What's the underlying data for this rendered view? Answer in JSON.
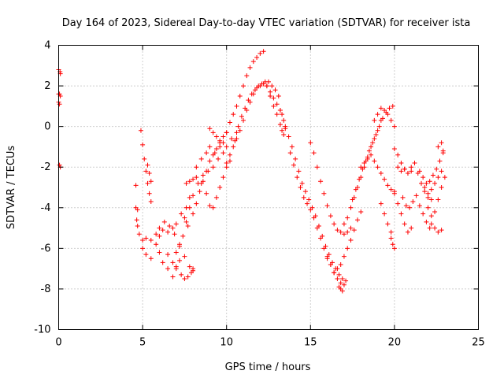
{
  "chart_data": {
    "type": "scatter",
    "title": "Day 164 of 2023, Sidereal Day-to-day VTEC variation (SDTVAR) for receiver ista",
    "xlabel": "GPS time / hours",
    "ylabel": "SDTVAR / TECUs",
    "xlim": [
      0,
      25
    ],
    "ylim": [
      -10,
      4
    ],
    "xticks": [
      0,
      5,
      10,
      15,
      20,
      25
    ],
    "yticks": [
      -10,
      -8,
      -6,
      -4,
      -2,
      0,
      2,
      4
    ],
    "xtick_labels": [
      "0",
      "5",
      "10",
      "15",
      "20",
      "25"
    ],
    "ytick_labels": [
      "-10",
      "-8",
      "-6",
      "-4",
      "-2",
      "0",
      "2",
      "4"
    ],
    "grid": true,
    "marker": "+",
    "color": "#ff0000",
    "series": [
      {
        "name": "s1",
        "x": [
          0.0,
          0.08,
          0.1
        ],
        "y": [
          2.8,
          2.7,
          2.6
        ]
      },
      {
        "name": "s2",
        "x": [
          0.0,
          0.05,
          0.1
        ],
        "y": [
          1.6,
          1.6,
          1.5
        ]
      },
      {
        "name": "s3",
        "x": [
          0.0,
          0.05
        ],
        "y": [
          1.2,
          1.1
        ]
      },
      {
        "name": "s4",
        "x": [
          0.05,
          0.1
        ],
        "y": [
          -1.9,
          -2.0
        ]
      },
      {
        "name": "s5",
        "x": [
          4.6,
          4.6,
          4.7,
          4.65,
          4.7
        ],
        "y": [
          -2.9,
          -4.0,
          -4.1,
          -4.6,
          -4.9
        ]
      },
      {
        "name": "s6",
        "x": [
          4.9,
          5.0,
          5.1,
          5.2,
          5.3,
          5.4,
          5.5
        ],
        "y": [
          -0.2,
          -0.9,
          -1.6,
          -2.2,
          -2.8,
          -3.3,
          -3.7
        ]
      },
      {
        "name": "s7",
        "x": [
          5.3,
          5.4,
          5.5
        ],
        "y": [
          -1.9,
          -2.3,
          -2.7
        ]
      },
      {
        "name": "s8",
        "x": [
          4.8,
          5.0,
          5.2,
          5.5,
          5.8,
          6.0,
          6.2,
          6.5,
          6.8,
          7.0,
          7.3,
          7.6,
          7.8
        ],
        "y": [
          -5.3,
          -5.6,
          -5.5,
          -5.6,
          -5.3,
          -5.4,
          -5.1,
          -5.2,
          -5.0,
          -4.8,
          -4.3,
          -4.0,
          -3.5
        ]
      },
      {
        "name": "s9",
        "x": [
          5.0,
          5.2,
          5.5,
          5.8,
          6.0,
          6.2,
          6.5,
          6.8,
          7.0,
          7.2
        ],
        "y": [
          -6.0,
          -6.3,
          -6.5,
          -5.8,
          -6.2,
          -6.7,
          -7.0,
          -7.4,
          -6.9,
          -6.6
        ]
      },
      {
        "name": "s10",
        "x": [
          6.0,
          6.3,
          6.6,
          6.9,
          7.2,
          7.5,
          7.8,
          8.0
        ],
        "y": [
          -5.0,
          -4.7,
          -4.9,
          -5.3,
          -5.8,
          -6.4,
          -6.9,
          -7.1
        ]
      },
      {
        "name": "s11",
        "x": [
          6.5,
          6.8,
          7.0,
          7.3,
          7.5,
          7.7,
          7.9,
          8.0
        ],
        "y": [
          -6.3,
          -6.7,
          -7.0,
          -7.3,
          -7.5,
          -7.4,
          -7.2,
          -7.0
        ]
      },
      {
        "name": "s12",
        "x": [
          7.0,
          7.2,
          7.4,
          7.6,
          7.8,
          8.0,
          8.3,
          8.6,
          8.9,
          9.2,
          9.5,
          9.8,
          10.0,
          10.3,
          10.6
        ],
        "y": [
          -6.2,
          -5.9,
          -5.4,
          -4.7,
          -4.0,
          -3.4,
          -2.8,
          -2.4,
          -2.2,
          -2.0,
          -1.6,
          -1.3,
          -1.0,
          -0.6,
          -0.3
        ]
      },
      {
        "name": "s13",
        "x": [
          7.5,
          7.7,
          8.0,
          8.2,
          8.4,
          8.6,
          8.8,
          9.0,
          9.3,
          9.6
        ],
        "y": [
          -4.5,
          -4.9,
          -4.3,
          -3.8,
          -3.2,
          -2.7,
          -2.2,
          -1.7,
          -1.3,
          -1.0
        ]
      },
      {
        "name": "s14",
        "x": [
          7.6,
          7.8,
          8.0,
          8.2
        ],
        "y": [
          -2.8,
          -2.7,
          -2.6,
          -2.5
        ]
      },
      {
        "name": "s15",
        "x": [
          8.2,
          8.5,
          8.8,
          9.0,
          9.2,
          9.4,
          9.6,
          9.8,
          10.0
        ],
        "y": [
          -2.0,
          -1.6,
          -1.3,
          -1.0,
          -1.4,
          -1.1,
          -0.8,
          -0.5,
          -0.3
        ]
      },
      {
        "name": "s16",
        "x": [
          8.5,
          8.8,
          9.0,
          9.2,
          9.4,
          9.6,
          9.8,
          10.0,
          10.2
        ],
        "y": [
          -2.8,
          -3.3,
          -3.9,
          -4.0,
          -3.5,
          -3.0,
          -2.5,
          -2.0,
          -1.7
        ]
      },
      {
        "name": "s17",
        "x": [
          9.0,
          9.2,
          9.4,
          9.6
        ],
        "y": [
          -0.1,
          -0.3,
          -0.5,
          -0.7
        ]
      },
      {
        "name": "s18",
        "x": [
          9.8,
          10.0,
          10.2,
          10.4,
          10.6,
          10.8,
          11.0,
          11.2,
          11.4,
          11.6,
          11.8,
          12.0,
          12.2
        ],
        "y": [
          -0.8,
          -0.3,
          0.2,
          0.6,
          1.0,
          1.5,
          2.0,
          2.5,
          2.9,
          3.2,
          3.4,
          3.6,
          3.7
        ]
      },
      {
        "name": "s19",
        "x": [
          10.0,
          10.2,
          10.4,
          10.6,
          10.8,
          11.0,
          11.2,
          11.4,
          11.6,
          11.8,
          12.0,
          12.2,
          12.4
        ],
        "y": [
          -1.8,
          -1.4,
          -1.0,
          -0.6,
          -0.2,
          0.3,
          0.8,
          1.2,
          1.6,
          1.9,
          2.0,
          2.1,
          2.0
        ]
      },
      {
        "name": "s20",
        "x": [
          10.5,
          10.7,
          10.9,
          11.1,
          11.3,
          11.5,
          11.7,
          11.9,
          12.1,
          12.3,
          12.5,
          12.7,
          12.9,
          13.1
        ],
        "y": [
          -0.7,
          0.0,
          0.5,
          0.9,
          1.3,
          1.6,
          1.8,
          2.0,
          2.1,
          2.2,
          2.2,
          2.0,
          1.8,
          1.5
        ]
      },
      {
        "name": "s21",
        "x": [
          12.4,
          12.6,
          12.8,
          13.0,
          13.2,
          13.4,
          13.5
        ],
        "y": [
          2.0,
          1.7,
          1.4,
          1.1,
          0.8,
          0.3,
          0.0
        ]
      },
      {
        "name": "s22",
        "x": [
          12.6,
          12.8,
          13.0,
          13.2,
          13.3,
          13.4
        ],
        "y": [
          1.5,
          1.0,
          0.6,
          0.1,
          -0.2,
          -0.4
        ]
      },
      {
        "name": "s23",
        "x": [
          13.2,
          13.3
        ],
        "y": [
          0.8,
          0.6
        ]
      },
      {
        "name": "s24",
        "x": [
          13.5,
          13.7,
          13.9,
          14.1,
          14.3,
          14.5,
          14.7,
          14.9,
          15.1,
          15.3,
          15.5,
          15.7,
          15.9,
          16.1,
          16.3,
          16.5,
          16.7,
          16.9,
          17.1
        ],
        "y": [
          -0.1,
          -0.5,
          -1.0,
          -1.6,
          -2.2,
          -2.8,
          -3.2,
          -3.6,
          -4.0,
          -4.4,
          -4.9,
          -5.4,
          -5.9,
          -6.3,
          -6.7,
          -7.0,
          -7.3,
          -7.5,
          -7.6
        ]
      },
      {
        "name": "s25",
        "x": [
          13.8,
          14.0,
          14.2,
          14.4,
          14.6,
          14.8,
          15.0,
          15.2,
          15.4,
          15.6,
          15.8,
          16.0,
          16.2,
          16.4,
          16.6,
          16.8,
          17.0
        ],
        "y": [
          -1.3,
          -1.9,
          -2.5,
          -3.0,
          -3.5,
          -3.8,
          -4.1,
          -4.5,
          -5.0,
          -5.5,
          -6.0,
          -6.4,
          -6.8,
          -7.2,
          -7.5,
          -7.7,
          -7.8
        ]
      },
      {
        "name": "s26",
        "x": [
          15.0,
          15.2,
          15.4,
          15.6,
          15.8,
          16.0,
          16.2,
          16.4,
          16.6,
          16.8,
          17.0,
          17.2,
          17.4
        ],
        "y": [
          -0.8,
          -1.3,
          -2.0,
          -2.7,
          -3.3,
          -3.9,
          -4.4,
          -4.8,
          -5.1,
          -5.2,
          -5.3,
          -5.2,
          -5.0
        ]
      },
      {
        "name": "s27",
        "x": [
          16.0,
          16.2,
          16.4,
          16.6,
          16.8,
          17.0,
          17.2,
          17.4,
          17.6,
          17.8,
          18.0
        ],
        "y": [
          -6.5,
          -6.8,
          -7.2,
          -7.0,
          -6.8,
          -6.4,
          -6.0,
          -5.6,
          -5.1,
          -4.6,
          -4.2
        ]
      },
      {
        "name": "s28",
        "x": [
          16.7,
          16.8,
          16.9
        ],
        "y": [
          -7.9,
          -8.0,
          -8.1
        ]
      },
      {
        "name": "s29",
        "x": [
          17.0,
          17.2,
          17.4,
          17.6,
          17.8,
          18.0,
          18.2,
          18.4,
          18.6,
          18.8,
          19.0,
          19.2
        ],
        "y": [
          -4.8,
          -4.5,
          -4.0,
          -3.5,
          -3.0,
          -2.5,
          -2.0,
          -1.5,
          -1.0,
          -0.6,
          -0.2,
          0.3
        ]
      },
      {
        "name": "s30",
        "x": [
          17.5,
          17.7,
          17.9,
          18.1,
          18.3,
          18.5,
          18.7,
          18.9,
          19.1,
          19.3,
          19.5,
          19.7,
          19.9
        ],
        "y": [
          -3.6,
          -3.1,
          -2.6,
          -2.1,
          -1.7,
          -1.2,
          -0.8,
          -0.4,
          0.0,
          0.4,
          0.7,
          0.9,
          1.0
        ]
      },
      {
        "name": "s31",
        "x": [
          18.0,
          18.2,
          18.4,
          18.6,
          18.8,
          19.0,
          19.2,
          19.4,
          19.6,
          19.8,
          20.0
        ],
        "y": [
          -2.0,
          -1.8,
          -1.6,
          -1.4,
          -1.7,
          -2.0,
          -2.3,
          -2.6,
          -2.9,
          -3.1,
          -3.2
        ]
      },
      {
        "name": "s32",
        "x": [
          18.8,
          19.0,
          19.2,
          19.4,
          19.6,
          19.8,
          20.0
        ],
        "y": [
          0.3,
          0.6,
          0.9,
          0.8,
          0.6,
          0.3,
          0.0
        ]
      },
      {
        "name": "s33",
        "x": [
          19.2,
          19.4,
          19.6,
          19.8
        ],
        "y": [
          -3.8,
          -4.3,
          -4.8,
          -5.2
        ]
      },
      {
        "name": "s34",
        "x": [
          19.8,
          19.9,
          20.0
        ],
        "y": [
          -5.5,
          -5.8,
          -6.0
        ]
      },
      {
        "name": "s35",
        "x": [
          20.0,
          20.2,
          20.4,
          20.6,
          20.8,
          21.0
        ],
        "y": [
          -1.1,
          -1.4,
          -1.8,
          -2.1,
          -2.3,
          -2.2
        ]
      },
      {
        "name": "s36",
        "x": [
          20.0,
          20.2,
          20.4,
          20.6,
          20.8,
          21.0
        ],
        "y": [
          -3.3,
          -3.8,
          -4.3,
          -4.8,
          -5.2,
          -5.0
        ]
      },
      {
        "name": "s37",
        "x": [
          20.2,
          20.4,
          20.6,
          20.8,
          21.0,
          21.2,
          21.4,
          21.6,
          21.8,
          22.0,
          22.2
        ],
        "y": [
          -2.0,
          -2.2,
          -2.1,
          -2.3,
          -2.0,
          -1.8,
          -2.3,
          -2.8,
          -3.2,
          -3.5,
          -3.6
        ]
      },
      {
        "name": "s38",
        "x": [
          20.5,
          20.7,
          20.9,
          21.1,
          21.3,
          21.5,
          21.7,
          21.9,
          22.1
        ],
        "y": [
          -3.5,
          -3.9,
          -4.0,
          -3.7,
          -3.4,
          -3.9,
          -4.3,
          -4.7,
          -5.0
        ]
      },
      {
        "name": "s39",
        "x": [
          21.5,
          21.7,
          21.9,
          22.1,
          22.3,
          22.5,
          22.7,
          22.9
        ],
        "y": [
          -2.2,
          -2.5,
          -2.8,
          -2.7,
          -2.4,
          -2.1,
          -1.7,
          -1.3
        ]
      },
      {
        "name": "s40",
        "x": [
          21.8,
          22.0,
          22.2,
          22.4,
          22.6,
          22.8
        ],
        "y": [
          -3.0,
          -3.3,
          -3.1,
          -2.8,
          -2.5,
          -2.2
        ]
      },
      {
        "name": "s41",
        "x": [
          22.0,
          22.2,
          22.4,
          22.6,
          22.8,
          23.0
        ],
        "y": [
          -4.0,
          -4.4,
          -4.2,
          -3.6,
          -3.0,
          -2.5
        ]
      },
      {
        "name": "s42",
        "x": [
          22.2,
          22.4,
          22.6,
          22.8
        ],
        "y": [
          -4.8,
          -5.0,
          -5.2,
          -5.1
        ]
      },
      {
        "name": "s43",
        "x": [
          22.6,
          22.8,
          22.9
        ],
        "y": [
          -1.0,
          -0.8,
          -1.2
        ]
      }
    ]
  }
}
